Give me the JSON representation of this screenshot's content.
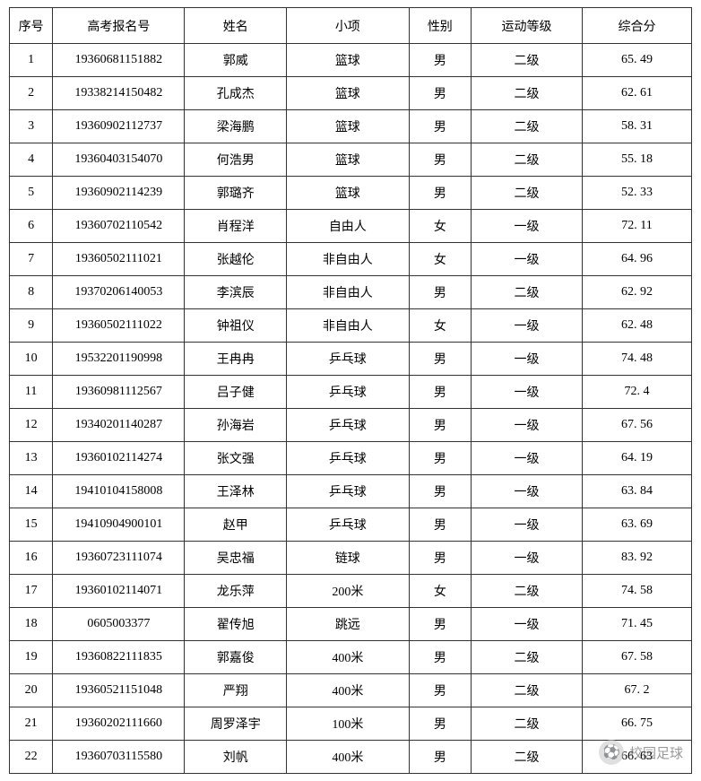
{
  "table": {
    "columns": [
      {
        "key": "seq",
        "label": "序号",
        "class": "col-seq"
      },
      {
        "key": "reg",
        "label": "高考报名号",
        "class": "col-reg"
      },
      {
        "key": "name",
        "label": "姓名",
        "class": "col-name"
      },
      {
        "key": "event",
        "label": "小项",
        "class": "col-event"
      },
      {
        "key": "gender",
        "label": "性别",
        "class": "col-gender"
      },
      {
        "key": "level",
        "label": "运动等级",
        "class": "col-level"
      },
      {
        "key": "score",
        "label": "综合分",
        "class": "col-score"
      }
    ],
    "rows": [
      {
        "seq": "1",
        "reg": "19360681151882",
        "name": "郭威",
        "event": "篮球",
        "gender": "男",
        "level": "二级",
        "score": "65. 49"
      },
      {
        "seq": "2",
        "reg": "19338214150482",
        "name": "孔成杰",
        "event": "篮球",
        "gender": "男",
        "level": "二级",
        "score": "62. 61"
      },
      {
        "seq": "3",
        "reg": "19360902112737",
        "name": "梁海鹏",
        "event": "篮球",
        "gender": "男",
        "level": "二级",
        "score": "58. 31"
      },
      {
        "seq": "4",
        "reg": "19360403154070",
        "name": "何浩男",
        "event": "篮球",
        "gender": "男",
        "level": "二级",
        "score": "55. 18"
      },
      {
        "seq": "5",
        "reg": "19360902114239",
        "name": "郭璐齐",
        "event": "篮球",
        "gender": "男",
        "level": "二级",
        "score": "52. 33"
      },
      {
        "seq": "6",
        "reg": "19360702110542",
        "name": "肖程洋",
        "event": "自由人",
        "gender": "女",
        "level": "一级",
        "score": "72. 11"
      },
      {
        "seq": "7",
        "reg": "19360502111021",
        "name": "张越伦",
        "event": "非自由人",
        "gender": "女",
        "level": "一级",
        "score": "64. 96"
      },
      {
        "seq": "8",
        "reg": "19370206140053",
        "name": "李滨辰",
        "event": "非自由人",
        "gender": "男",
        "level": "二级",
        "score": "62. 92"
      },
      {
        "seq": "9",
        "reg": "19360502111022",
        "name": "钟祖仪",
        "event": "非自由人",
        "gender": "女",
        "level": "一级",
        "score": "62. 48"
      },
      {
        "seq": "10",
        "reg": "19532201190998",
        "name": "王冉冉",
        "event": "乒乓球",
        "gender": "男",
        "level": "一级",
        "score": "74. 48"
      },
      {
        "seq": "11",
        "reg": "19360981112567",
        "name": "吕子健",
        "event": "乒乓球",
        "gender": "男",
        "level": "一级",
        "score": "72. 4"
      },
      {
        "seq": "12",
        "reg": "19340201140287",
        "name": "孙海岩",
        "event": "乒乓球",
        "gender": "男",
        "level": "一级",
        "score": "67. 56"
      },
      {
        "seq": "13",
        "reg": "19360102114274",
        "name": "张文强",
        "event": "乒乓球",
        "gender": "男",
        "level": "一级",
        "score": "64. 19"
      },
      {
        "seq": "14",
        "reg": "19410104158008",
        "name": "王泽林",
        "event": "乒乓球",
        "gender": "男",
        "level": "一级",
        "score": "63. 84"
      },
      {
        "seq": "15",
        "reg": "19410904900101",
        "name": "赵甲",
        "event": "乒乓球",
        "gender": "男",
        "level": "一级",
        "score": "63. 69"
      },
      {
        "seq": "16",
        "reg": "19360723111074",
        "name": "吴忠福",
        "event": "链球",
        "gender": "男",
        "level": "一级",
        "score": "83. 92"
      },
      {
        "seq": "17",
        "reg": "19360102114071",
        "name": "龙乐萍",
        "event": "200米",
        "gender": "女",
        "level": "二级",
        "score": "74. 58"
      },
      {
        "seq": "18",
        "reg": "0605003377",
        "name": "翟传旭",
        "event": "跳远",
        "gender": "男",
        "level": "一级",
        "score": "71. 45"
      },
      {
        "seq": "19",
        "reg": "19360822111835",
        "name": "郭嘉俊",
        "event": "400米",
        "gender": "男",
        "level": "二级",
        "score": "67. 58"
      },
      {
        "seq": "20",
        "reg": "19360521151048",
        "name": "严翔",
        "event": "400米",
        "gender": "男",
        "level": "二级",
        "score": "67. 2"
      },
      {
        "seq": "21",
        "reg": "19360202111660",
        "name": "周罗泽宇",
        "event": "100米",
        "gender": "男",
        "level": "二级",
        "score": "66. 75"
      },
      {
        "seq": "22",
        "reg": "19360703115580",
        "name": "刘帆",
        "event": "400米",
        "gender": "男",
        "level": "二级",
        "score": "66. 63"
      }
    ]
  },
  "watermark": {
    "icon": "⚽",
    "text": "校园足球"
  }
}
